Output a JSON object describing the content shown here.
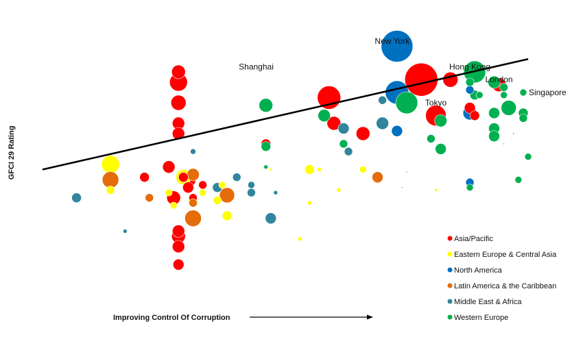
{
  "chart_data": {
    "type": "scatter",
    "title": "",
    "xlabel": "Improving Control Of Corruption",
    "ylabel": "GFCI 29 Rating",
    "xlim": [
      0,
      100
    ],
    "ylim": [
      0,
      100
    ],
    "grid": false,
    "legend_position": "bottom-right",
    "trendline": {
      "x": [
        0,
        100
      ],
      "y": [
        46,
        89
      ]
    },
    "annotations": [
      {
        "text": "New York",
        "x": 72,
        "y": 95
      },
      {
        "text": "Hong Kong",
        "x": 88,
        "y": 85
      },
      {
        "text": "London",
        "x": 94,
        "y": 80
      },
      {
        "text": "Shanghai",
        "x": 44,
        "y": 85
      },
      {
        "text": "Tokyo",
        "x": 81,
        "y": 71
      },
      {
        "text": "Singapore",
        "x": 104,
        "y": 75
      }
    ],
    "series": [
      {
        "name": "Asia/Pacific",
        "color": "#ff0000",
        "points": [
          {
            "x": 78,
            "y": 81,
            "s": 24
          },
          {
            "x": 59,
            "y": 74,
            "s": 17
          },
          {
            "x": 81,
            "y": 67,
            "s": 15
          },
          {
            "x": 84,
            "y": 81,
            "s": 11
          },
          {
            "x": 94,
            "y": 79,
            "s": 10
          },
          {
            "x": 28,
            "y": 80,
            "s": 13
          },
          {
            "x": 28,
            "y": 84,
            "s": 10
          },
          {
            "x": 28,
            "y": 72,
            "s": 11
          },
          {
            "x": 28,
            "y": 64,
            "s": 9
          },
          {
            "x": 28,
            "y": 60,
            "s": 9
          },
          {
            "x": 60,
            "y": 64,
            "s": 10
          },
          {
            "x": 66,
            "y": 60,
            "s": 10
          },
          {
            "x": 46,
            "y": 56,
            "s": 7
          },
          {
            "x": 88,
            "y": 70,
            "s": 8
          },
          {
            "x": 89,
            "y": 67,
            "s": 7
          },
          {
            "x": 21,
            "y": 43,
            "s": 7
          },
          {
            "x": 27,
            "y": 35,
            "s": 10
          },
          {
            "x": 26,
            "y": 47,
            "s": 9
          },
          {
            "x": 29,
            "y": 43,
            "s": 7
          },
          {
            "x": 30,
            "y": 39,
            "s": 8
          },
          {
            "x": 30,
            "y": 42,
            "s": 11
          },
          {
            "x": 33,
            "y": 40,
            "s": 6
          },
          {
            "x": 31,
            "y": 35,
            "s": 6
          },
          {
            "x": 28,
            "y": 22,
            "s": 9
          },
          {
            "x": 28,
            "y": 20,
            "s": 10
          },
          {
            "x": 28,
            "y": 16,
            "s": 9
          },
          {
            "x": 28,
            "y": 9,
            "s": 8
          },
          {
            "x": 97,
            "y": 60,
            "s": 1
          }
        ]
      },
      {
        "name": "Eastern Europe & Central Asia",
        "color": "#ffff00",
        "points": [
          {
            "x": 14,
            "y": 48,
            "s": 13
          },
          {
            "x": 29,
            "y": 43,
            "s": 11
          },
          {
            "x": 14,
            "y": 38,
            "s": 6
          },
          {
            "x": 31,
            "y": 34,
            "s": 7
          },
          {
            "x": 36,
            "y": 34,
            "s": 6
          },
          {
            "x": 33,
            "y": 37,
            "s": 5
          },
          {
            "x": 37,
            "y": 40,
            "s": 5
          },
          {
            "x": 38,
            "y": 28,
            "s": 7
          },
          {
            "x": 26,
            "y": 37,
            "s": 5
          },
          {
            "x": 27,
            "y": 32,
            "s": 5
          },
          {
            "x": 47,
            "y": 46,
            "s": 2
          },
          {
            "x": 55,
            "y": 46,
            "s": 7
          },
          {
            "x": 57,
            "y": 46,
            "s": 3
          },
          {
            "x": 55,
            "y": 33,
            "s": 3
          },
          {
            "x": 61,
            "y": 38,
            "s": 3
          },
          {
            "x": 66,
            "y": 46,
            "s": 5
          },
          {
            "x": 53,
            "y": 19,
            "s": 3
          },
          {
            "x": 81,
            "y": 38,
            "s": 2
          }
        ]
      },
      {
        "name": "North America",
        "color": "#0070c0",
        "points": [
          {
            "x": 73,
            "y": 94,
            "s": 23
          },
          {
            "x": 73,
            "y": 76,
            "s": 17
          },
          {
            "x": 73,
            "y": 61,
            "s": 8
          },
          {
            "x": 88,
            "y": 77,
            "s": 6
          },
          {
            "x": 88,
            "y": 68,
            "s": 10
          },
          {
            "x": 88,
            "y": 41,
            "s": 6
          }
        ]
      },
      {
        "name": "Latin America & the Caribbean",
        "color": "#e46c0a",
        "points": [
          {
            "x": 14,
            "y": 42,
            "s": 12
          },
          {
            "x": 22,
            "y": 35,
            "s": 6
          },
          {
            "x": 31,
            "y": 44,
            "s": 9
          },
          {
            "x": 31,
            "y": 33,
            "s": 6
          },
          {
            "x": 38,
            "y": 36,
            "s": 11
          },
          {
            "x": 31,
            "y": 27,
            "s": 12
          },
          {
            "x": 69,
            "y": 43,
            "s": 8
          },
          {
            "x": 74,
            "y": 39,
            "s": 1
          },
          {
            "x": 75,
            "y": 45,
            "s": 1
          }
        ]
      },
      {
        "name": "Middle East & Africa",
        "color": "#31859c",
        "points": [
          {
            "x": 7,
            "y": 35,
            "s": 7
          },
          {
            "x": 31,
            "y": 53,
            "s": 4
          },
          {
            "x": 36,
            "y": 39,
            "s": 7
          },
          {
            "x": 40,
            "y": 43,
            "s": 6
          },
          {
            "x": 43,
            "y": 40,
            "s": 5
          },
          {
            "x": 43,
            "y": 37,
            "s": 6
          },
          {
            "x": 48,
            "y": 37,
            "s": 3
          },
          {
            "x": 47,
            "y": 27,
            "s": 8
          },
          {
            "x": 62,
            "y": 62,
            "s": 8
          },
          {
            "x": 63,
            "y": 53,
            "s": 6
          },
          {
            "x": 70,
            "y": 64,
            "s": 9
          },
          {
            "x": 70,
            "y": 73,
            "s": 6
          },
          {
            "x": 17,
            "y": 22,
            "s": 3
          }
        ]
      },
      {
        "name": "Western Europe",
        "color": "#00b050",
        "points": [
          {
            "x": 89,
            "y": 84,
            "s": 16
          },
          {
            "x": 75,
            "y": 72,
            "s": 16
          },
          {
            "x": 46,
            "y": 71,
            "s": 10
          },
          {
            "x": 58,
            "y": 67,
            "s": 9
          },
          {
            "x": 62,
            "y": 56,
            "s": 6
          },
          {
            "x": 46,
            "y": 55,
            "s": 7
          },
          {
            "x": 46,
            "y": 47,
            "s": 3
          },
          {
            "x": 82,
            "y": 65,
            "s": 9
          },
          {
            "x": 82,
            "y": 54,
            "s": 8
          },
          {
            "x": 80,
            "y": 58,
            "s": 6
          },
          {
            "x": 93,
            "y": 80,
            "s": 9
          },
          {
            "x": 95,
            "y": 78,
            "s": 6
          },
          {
            "x": 95,
            "y": 75,
            "s": 5
          },
          {
            "x": 96,
            "y": 70,
            "s": 11
          },
          {
            "x": 93,
            "y": 68,
            "s": 8
          },
          {
            "x": 93,
            "y": 62,
            "s": 8
          },
          {
            "x": 93,
            "y": 59,
            "s": 8
          },
          {
            "x": 99,
            "y": 76,
            "s": 5
          },
          {
            "x": 99,
            "y": 68,
            "s": 7
          },
          {
            "x": 99,
            "y": 66,
            "s": 6
          },
          {
            "x": 88,
            "y": 80,
            "s": 6
          },
          {
            "x": 89,
            "y": 75,
            "s": 7
          },
          {
            "x": 90,
            "y": 75,
            "s": 5
          },
          {
            "x": 88,
            "y": 39,
            "s": 5
          },
          {
            "x": 98,
            "y": 42,
            "s": 5
          },
          {
            "x": 100,
            "y": 51,
            "s": 5
          },
          {
            "x": 95,
            "y": 56,
            "s": 1
          }
        ]
      }
    ]
  }
}
